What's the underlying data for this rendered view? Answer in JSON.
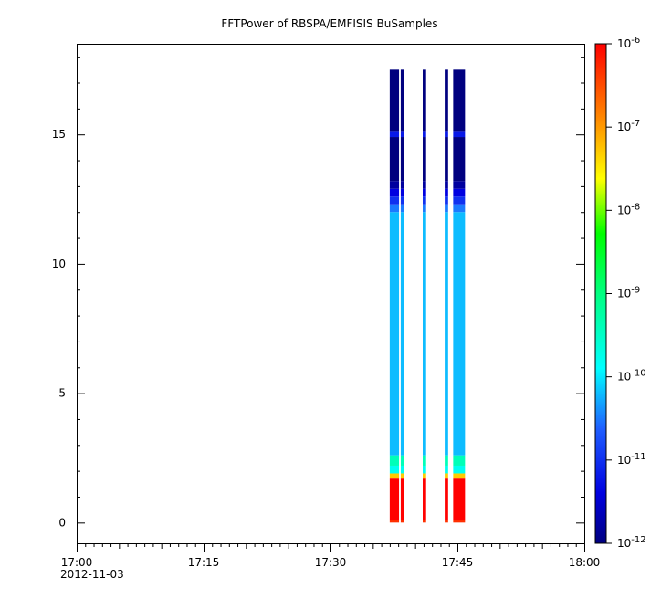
{
  "chart_data": {
    "type": "heatmap",
    "title": "FFTPower of RBSPA/EMFISIS  BuSamples",
    "xlabel": "",
    "ylabel": "",
    "x_date_label": "2012-11-03",
    "xlim": [
      "17:00",
      "18:00"
    ],
    "ylim": [
      -0.8,
      18.5
    ],
    "x_ticks": [
      "17:00",
      "17:15",
      "17:30",
      "17:45",
      "18:00"
    ],
    "y_ticks": [
      0,
      5,
      10,
      15
    ],
    "colorbar": {
      "scale": "log",
      "range": [
        1e-12,
        1e-06
      ],
      "ticks": [
        {
          "base": "10",
          "exp": "-6"
        },
        {
          "base": "10",
          "exp": "-7"
        },
        {
          "base": "10",
          "exp": "-8"
        },
        {
          "base": "10",
          "exp": "-9"
        },
        {
          "base": "10",
          "exp": "-10"
        },
        {
          "base": "10",
          "exp": "-11"
        },
        {
          "base": "10",
          "exp": "-12"
        }
      ],
      "ticks_values": [
        -6,
        -7,
        -8,
        -9,
        -10,
        -11,
        -12
      ]
    },
    "time_blocks": [
      {
        "start_min": 37.0,
        "end_min": 38.1
      },
      {
        "start_min": 38.3,
        "end_min": 38.7
      },
      {
        "start_min": 40.9,
        "end_min": 41.3
      },
      {
        "start_min": 43.5,
        "end_min": 43.9
      },
      {
        "start_min": 44.5,
        "end_min": 45.9
      }
    ],
    "spectrum_profile": [
      {
        "y0": 0.0,
        "y1": 0.1,
        "log10_power": -6.3
      },
      {
        "y0": 0.1,
        "y1": 1.7,
        "log10_power": -6.0
      },
      {
        "y0": 1.7,
        "y1": 1.9,
        "log10_power": -7.3
      },
      {
        "y0": 1.9,
        "y1": 2.2,
        "log10_power": -9.8
      },
      {
        "y0": 2.2,
        "y1": 2.6,
        "log10_power": -9.4
      },
      {
        "y0": 2.6,
        "y1": 12.0,
        "log10_power": -10.2
      },
      {
        "y0": 12.0,
        "y1": 12.3,
        "log10_power": -10.5
      },
      {
        "y0": 12.3,
        "y1": 12.6,
        "log10_power": -11.0
      },
      {
        "y0": 12.6,
        "y1": 12.9,
        "log10_power": -11.4
      },
      {
        "y0": 12.9,
        "y1": 13.2,
        "log10_power": -11.8
      },
      {
        "y0": 13.2,
        "y1": 14.9,
        "log10_power": -12.0
      },
      {
        "y0": 14.9,
        "y1": 15.1,
        "log10_power": -11.2
      },
      {
        "y0": 15.1,
        "y1": 17.5,
        "log10_power": -12.0
      }
    ]
  }
}
